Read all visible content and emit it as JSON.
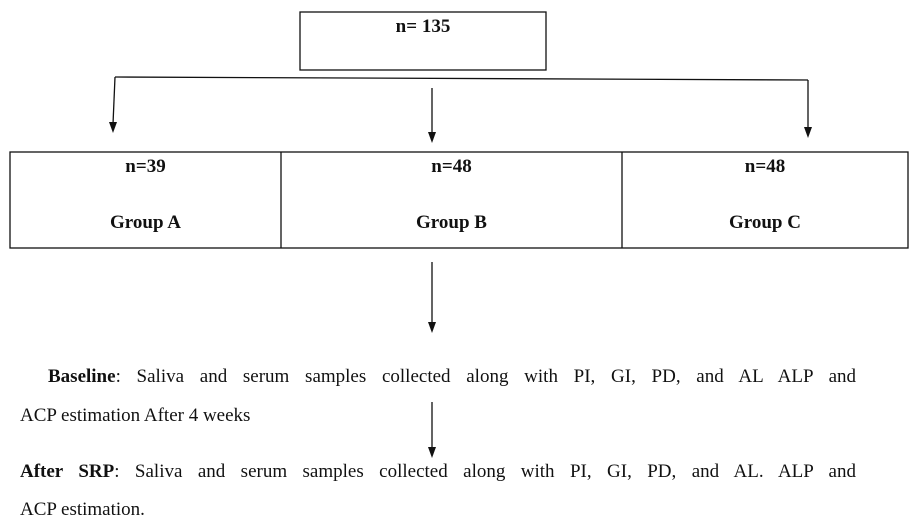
{
  "top": {
    "label": "n= 135"
  },
  "groups": [
    {
      "count": "n=39",
      "name": "Group A"
    },
    {
      "count": "n=48",
      "name": "Group B"
    },
    {
      "count": "n=48",
      "name": "Group C"
    }
  ],
  "baseline": {
    "label": "Baseline",
    "line1": ": Saliva and serum samples collected along with PI, GI, PD, and AL ALP and",
    "line2": "ACP estimation After 4 weeks"
  },
  "after": {
    "label": "After SRP",
    "line1": ": Saliva and serum samples collected along with PI, GI, PD, and AL. ALP and",
    "line2": "ACP estimation."
  }
}
